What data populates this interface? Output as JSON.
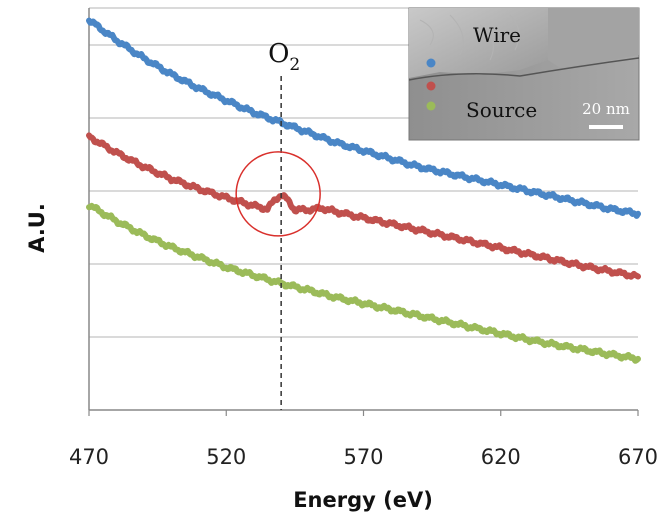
{
  "chart_data": {
    "type": "line",
    "xlabel": "Energy (eV)",
    "ylabel": "A.U.",
    "xlim": [
      470,
      670
    ],
    "ylim": [
      0,
      10
    ],
    "x_ticks": [
      "470",
      "520",
      "570",
      "620",
      "670"
    ],
    "grid": true,
    "annotation": {
      "label": "O",
      "subscript": "2",
      "x": 540,
      "circle_series": 1
    },
    "series": [
      {
        "color": "#4A86C6",
        "x": [
          470,
          480,
          490,
          500,
          510,
          520,
          530,
          540,
          550,
          560,
          570,
          580,
          590,
          600,
          610,
          620,
          630,
          640,
          650,
          660,
          670
        ],
        "values": [
          9.7,
          9.2,
          8.75,
          8.35,
          8.0,
          7.7,
          7.4,
          7.15,
          6.9,
          6.65,
          6.45,
          6.25,
          6.05,
          5.9,
          5.75,
          5.6,
          5.45,
          5.3,
          5.15,
          5.0,
          4.88
        ]
      },
      {
        "color": "#C0504D",
        "x": [
          470,
          480,
          490,
          500,
          510,
          520,
          530,
          535,
          538,
          540,
          542,
          545,
          550,
          555,
          560,
          570,
          580,
          590,
          600,
          610,
          620,
          630,
          640,
          650,
          660,
          670
        ],
        "values": [
          6.8,
          6.4,
          6.05,
          5.75,
          5.5,
          5.28,
          5.08,
          5.0,
          5.25,
          5.35,
          5.25,
          4.98,
          4.98,
          5.02,
          4.93,
          4.78,
          4.63,
          4.48,
          4.33,
          4.18,
          4.03,
          3.88,
          3.73,
          3.58,
          3.45,
          3.32
        ]
      },
      {
        "color": "#9BBB59",
        "x": [
          470,
          480,
          490,
          500,
          510,
          520,
          530,
          540,
          550,
          560,
          570,
          580,
          590,
          600,
          610,
          620,
          630,
          640,
          650,
          660,
          670
        ],
        "values": [
          5.1,
          4.7,
          4.35,
          4.05,
          3.8,
          3.55,
          3.35,
          3.15,
          2.98,
          2.8,
          2.65,
          2.5,
          2.35,
          2.2,
          2.05,
          1.9,
          1.75,
          1.62,
          1.5,
          1.38,
          1.27
        ]
      }
    ]
  },
  "inset": {
    "wire_label": "Wire",
    "source_label": "Source",
    "scale_label": "20 nm",
    "dot_colors": [
      "#4A86C6",
      "#C0504D",
      "#9BBB59"
    ]
  }
}
